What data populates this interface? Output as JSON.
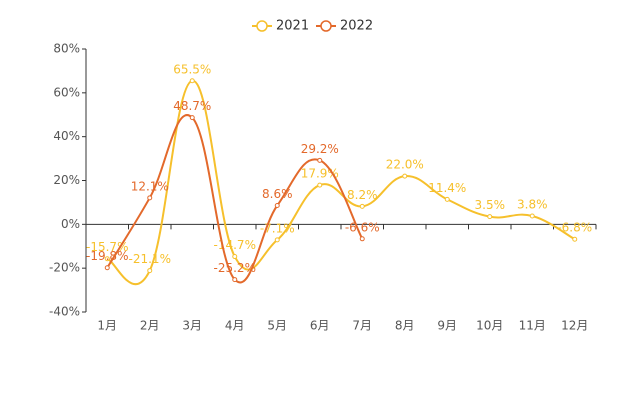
{
  "chart_data": {
    "type": "line",
    "categories": [
      "1月",
      "2月",
      "3月",
      "4月",
      "5月",
      "6月",
      "7月",
      "8月",
      "9月",
      "10月",
      "11月",
      "12月"
    ],
    "series": [
      {
        "name": "2021",
        "color": "#f6c02c",
        "values": [
          -15.7,
          -21.1,
          65.5,
          -14.7,
          -7.1,
          17.9,
          8.2,
          22.0,
          11.4,
          3.5,
          3.8,
          -6.8
        ],
        "value_labels": [
          "-15.7%",
          "-21.1%",
          "65.5%",
          "-14.7%",
          "-7.1%",
          "17.9%",
          "8.2%",
          "22.0%",
          "11.4%",
          "3.5%",
          "3.8%",
          "-6.8%"
        ]
      },
      {
        "name": "2022",
        "color": "#e3692b",
        "values": [
          -19.8,
          12.1,
          48.7,
          -25.2,
          8.6,
          29.2,
          -6.6,
          null,
          null,
          null,
          null,
          null
        ],
        "value_labels": [
          "-19.8%",
          "12.1%",
          "48.7%",
          "-25.2%",
          "8.6%",
          "29.2%",
          "-6.6%",
          null,
          null,
          null,
          null,
          null
        ]
      }
    ],
    "ylim": [
      -40,
      80
    ],
    "yticks": [
      {
        "value": -40,
        "label": "-40%"
      },
      {
        "value": -20,
        "label": "-20%"
      },
      {
        "value": 0,
        "label": "0%"
      },
      {
        "value": 20,
        "label": "20%"
      },
      {
        "value": 40,
        "label": "40%"
      },
      {
        "value": 60,
        "label": "60%"
      },
      {
        "value": 80,
        "label": "80%"
      }
    ],
    "grid": false,
    "legend": "top"
  }
}
